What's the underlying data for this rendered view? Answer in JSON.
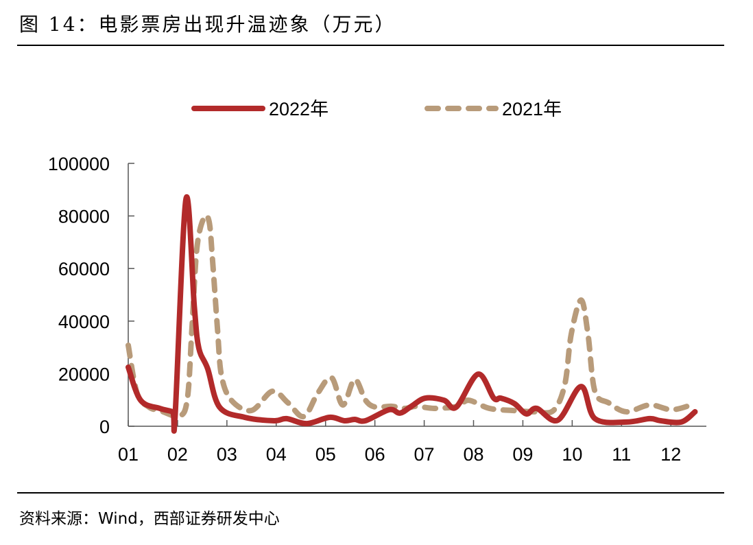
{
  "title": "图 14：电影票房出现升温迹象（万元）",
  "source": "资料来源：Wind，西部证券研发中心",
  "chart_data": {
    "type": "line",
    "title": "",
    "xlabel": "",
    "ylabel": "",
    "ylim": [
      0,
      100000
    ],
    "xlim": [
      1,
      12.72
    ],
    "yticks": [
      0,
      20000,
      40000,
      60000,
      80000,
      100000
    ],
    "xticks": [
      {
        "x": 1,
        "label": "01"
      },
      {
        "x": 2,
        "label": "02"
      },
      {
        "x": 3,
        "label": "03"
      },
      {
        "x": 4,
        "label": "04"
      },
      {
        "x": 5,
        "label": "05"
      },
      {
        "x": 6,
        "label": "06"
      },
      {
        "x": 7,
        "label": "07"
      },
      {
        "x": 8,
        "label": "08"
      },
      {
        "x": 9,
        "label": "09"
      },
      {
        "x": 10,
        "label": "10"
      },
      {
        "x": 11,
        "label": "11"
      },
      {
        "x": 12,
        "label": "12"
      }
    ],
    "grid": false,
    "legend": "top",
    "series": [
      {
        "name": "2022年",
        "color": "#B22A2A",
        "style": "solid",
        "x": [
          1.0,
          1.25,
          1.64,
          1.9,
          1.95,
          2.17,
          2.34,
          2.43,
          2.61,
          2.85,
          3.36,
          3.96,
          4.21,
          4.62,
          5.08,
          5.38,
          5.59,
          5.81,
          6.29,
          6.51,
          6.74,
          7.02,
          7.4,
          7.65,
          8.09,
          8.41,
          8.55,
          8.83,
          9.07,
          9.28,
          9.71,
          10.18,
          10.46,
          11.1,
          11.57,
          11.79,
          12.21,
          12.49
        ],
        "y": [
          22450,
          9900,
          6800,
          5500,
          3900,
          86400,
          45400,
          29800,
          21900,
          7300,
          3400,
          2100,
          2900,
          1000,
          3400,
          2100,
          2600,
          2100,
          6300,
          5000,
          7600,
          10700,
          9900,
          7300,
          19800,
          10700,
          10700,
          8600,
          4700,
          6800,
          2300,
          15100,
          2900,
          1600,
          2900,
          2100,
          1600,
          5500
        ]
      },
      {
        "name": "2021年",
        "color": "#B89B7A",
        "style": "dashed",
        "x": [
          1.0,
          1.18,
          1.42,
          1.64,
          2.04,
          2.2,
          2.29,
          2.39,
          2.53,
          2.64,
          2.71,
          2.81,
          2.89,
          3.09,
          3.5,
          3.92,
          4.24,
          4.56,
          4.84,
          5.12,
          5.35,
          5.59,
          5.81,
          6.01,
          6.33,
          6.61,
          6.84,
          7.2,
          7.68,
          7.9,
          8.32,
          8.79,
          9.25,
          9.62,
          9.85,
          9.98,
          10.18,
          10.32,
          10.46,
          10.74,
          11.1,
          11.57,
          12.03,
          12.49
        ],
        "y": [
          30800,
          12500,
          7300,
          6000,
          3900,
          10700,
          36800,
          67400,
          79100,
          77800,
          62900,
          36800,
          19300,
          9900,
          6000,
          13300,
          8900,
          3700,
          12500,
          18500,
          8100,
          17800,
          9900,
          7300,
          7600,
          6800,
          7600,
          6800,
          7600,
          9900,
          6800,
          6000,
          5500,
          6000,
          15900,
          35000,
          48000,
          35000,
          13300,
          8900,
          5500,
          8100,
          6300,
          8600
        ]
      }
    ]
  }
}
